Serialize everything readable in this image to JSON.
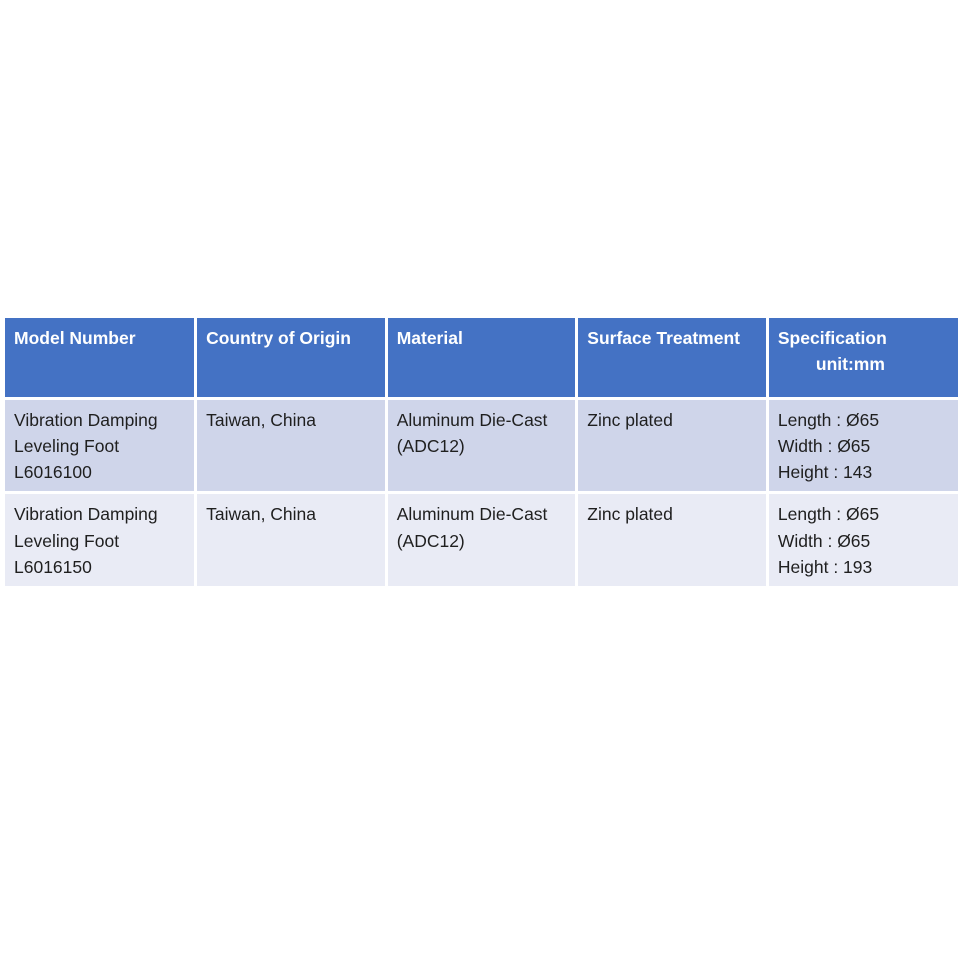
{
  "colors": {
    "header_bg": "#4472C4",
    "header_text": "#FFFFFF",
    "row_band_dark": "#CFD5EA",
    "row_band_light": "#E9EBF5",
    "body_text": "#1F1F1F"
  },
  "table": {
    "columns": [
      {
        "label": "Model Number"
      },
      {
        "label": "Country of Origin"
      },
      {
        "label": "Material"
      },
      {
        "label": "Surface Treatment"
      },
      {
        "label": "Specification",
        "sublabel": "unit:mm"
      }
    ],
    "rows": [
      {
        "model": "Vibration Damping\nLeveling Foot\nL6016100",
        "origin": "Taiwan, China",
        "material": "Aluminum Die-Cast\n(ADC12)",
        "surface": "Zinc plated",
        "spec": "Length : Ø65\nWidth : Ø65\nHeight : 143"
      },
      {
        "model": "Vibration Damping\nLeveling Foot\nL6016150",
        "origin": "Taiwan, China",
        "material": "Aluminum Die-Cast\n(ADC12)",
        "surface": "Zinc plated",
        "spec": "Length : Ø65\nWidth : Ø65\nHeight : 193"
      }
    ]
  }
}
